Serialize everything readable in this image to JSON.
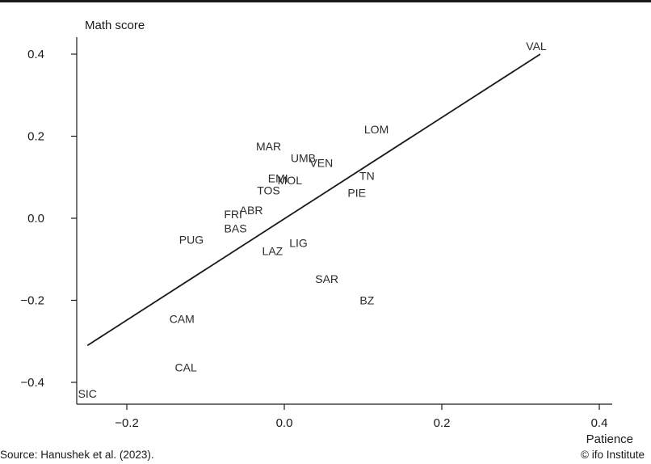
{
  "footer": {
    "source": "Source: Hanushek et al. (2023).",
    "credit": "© ifo Institute"
  },
  "chart_data": {
    "type": "scatter",
    "title": "",
    "xlabel": "Patience",
    "ylabel": "Math score",
    "xlim": [
      -0.26,
      0.41
    ],
    "ylim": [
      -0.45,
      0.44
    ],
    "xticks": [
      -0.2,
      0.0,
      0.2,
      0.4
    ],
    "xtick_labels": [
      "−0.2",
      "0.0",
      "0.2",
      "0.4"
    ],
    "yticks": [
      -0.4,
      -0.2,
      0.0,
      0.2,
      0.4
    ],
    "ytick_labels": [
      "−0.4",
      "−0.2",
      "0.0",
      "0.2",
      "0.4"
    ],
    "grid": false,
    "points": [
      {
        "label": "VAL",
        "x": 0.32,
        "y": 0.42
      },
      {
        "label": "LOM",
        "x": 0.117,
        "y": 0.217
      },
      {
        "label": "MAR",
        "x": -0.02,
        "y": 0.175
      },
      {
        "label": "UMB",
        "x": 0.024,
        "y": 0.147
      },
      {
        "label": "VEN",
        "x": 0.047,
        "y": 0.135
      },
      {
        "label": "TN",
        "x": 0.105,
        "y": 0.103
      },
      {
        "label": "EMI",
        "x": -0.008,
        "y": 0.098
      },
      {
        "label": "MOL",
        "x": 0.007,
        "y": 0.093
      },
      {
        "label": "TOS",
        "x": -0.02,
        "y": 0.068
      },
      {
        "label": "PIE",
        "x": 0.092,
        "y": 0.062
      },
      {
        "label": "FRI",
        "x": -0.065,
        "y": 0.01
      },
      {
        "label": "ABR",
        "x": -0.042,
        "y": 0.02
      },
      {
        "label": "BAS",
        "x": -0.062,
        "y": -0.025
      },
      {
        "label": "PUG",
        "x": -0.118,
        "y": -0.052
      },
      {
        "label": "LIG",
        "x": 0.018,
        "y": -0.06
      },
      {
        "label": "LAZ",
        "x": -0.015,
        "y": -0.08
      },
      {
        "label": "SAR",
        "x": 0.054,
        "y": -0.148
      },
      {
        "label": "BZ",
        "x": 0.105,
        "y": -0.2
      },
      {
        "label": "CAM",
        "x": -0.13,
        "y": -0.245
      },
      {
        "label": "CAL",
        "x": -0.125,
        "y": -0.364
      },
      {
        "label": "SIC",
        "x": -0.25,
        "y": -0.428
      }
    ],
    "fit_line": {
      "x": [
        -0.25,
        0.325
      ],
      "y": [
        -0.31,
        0.4
      ]
    }
  }
}
